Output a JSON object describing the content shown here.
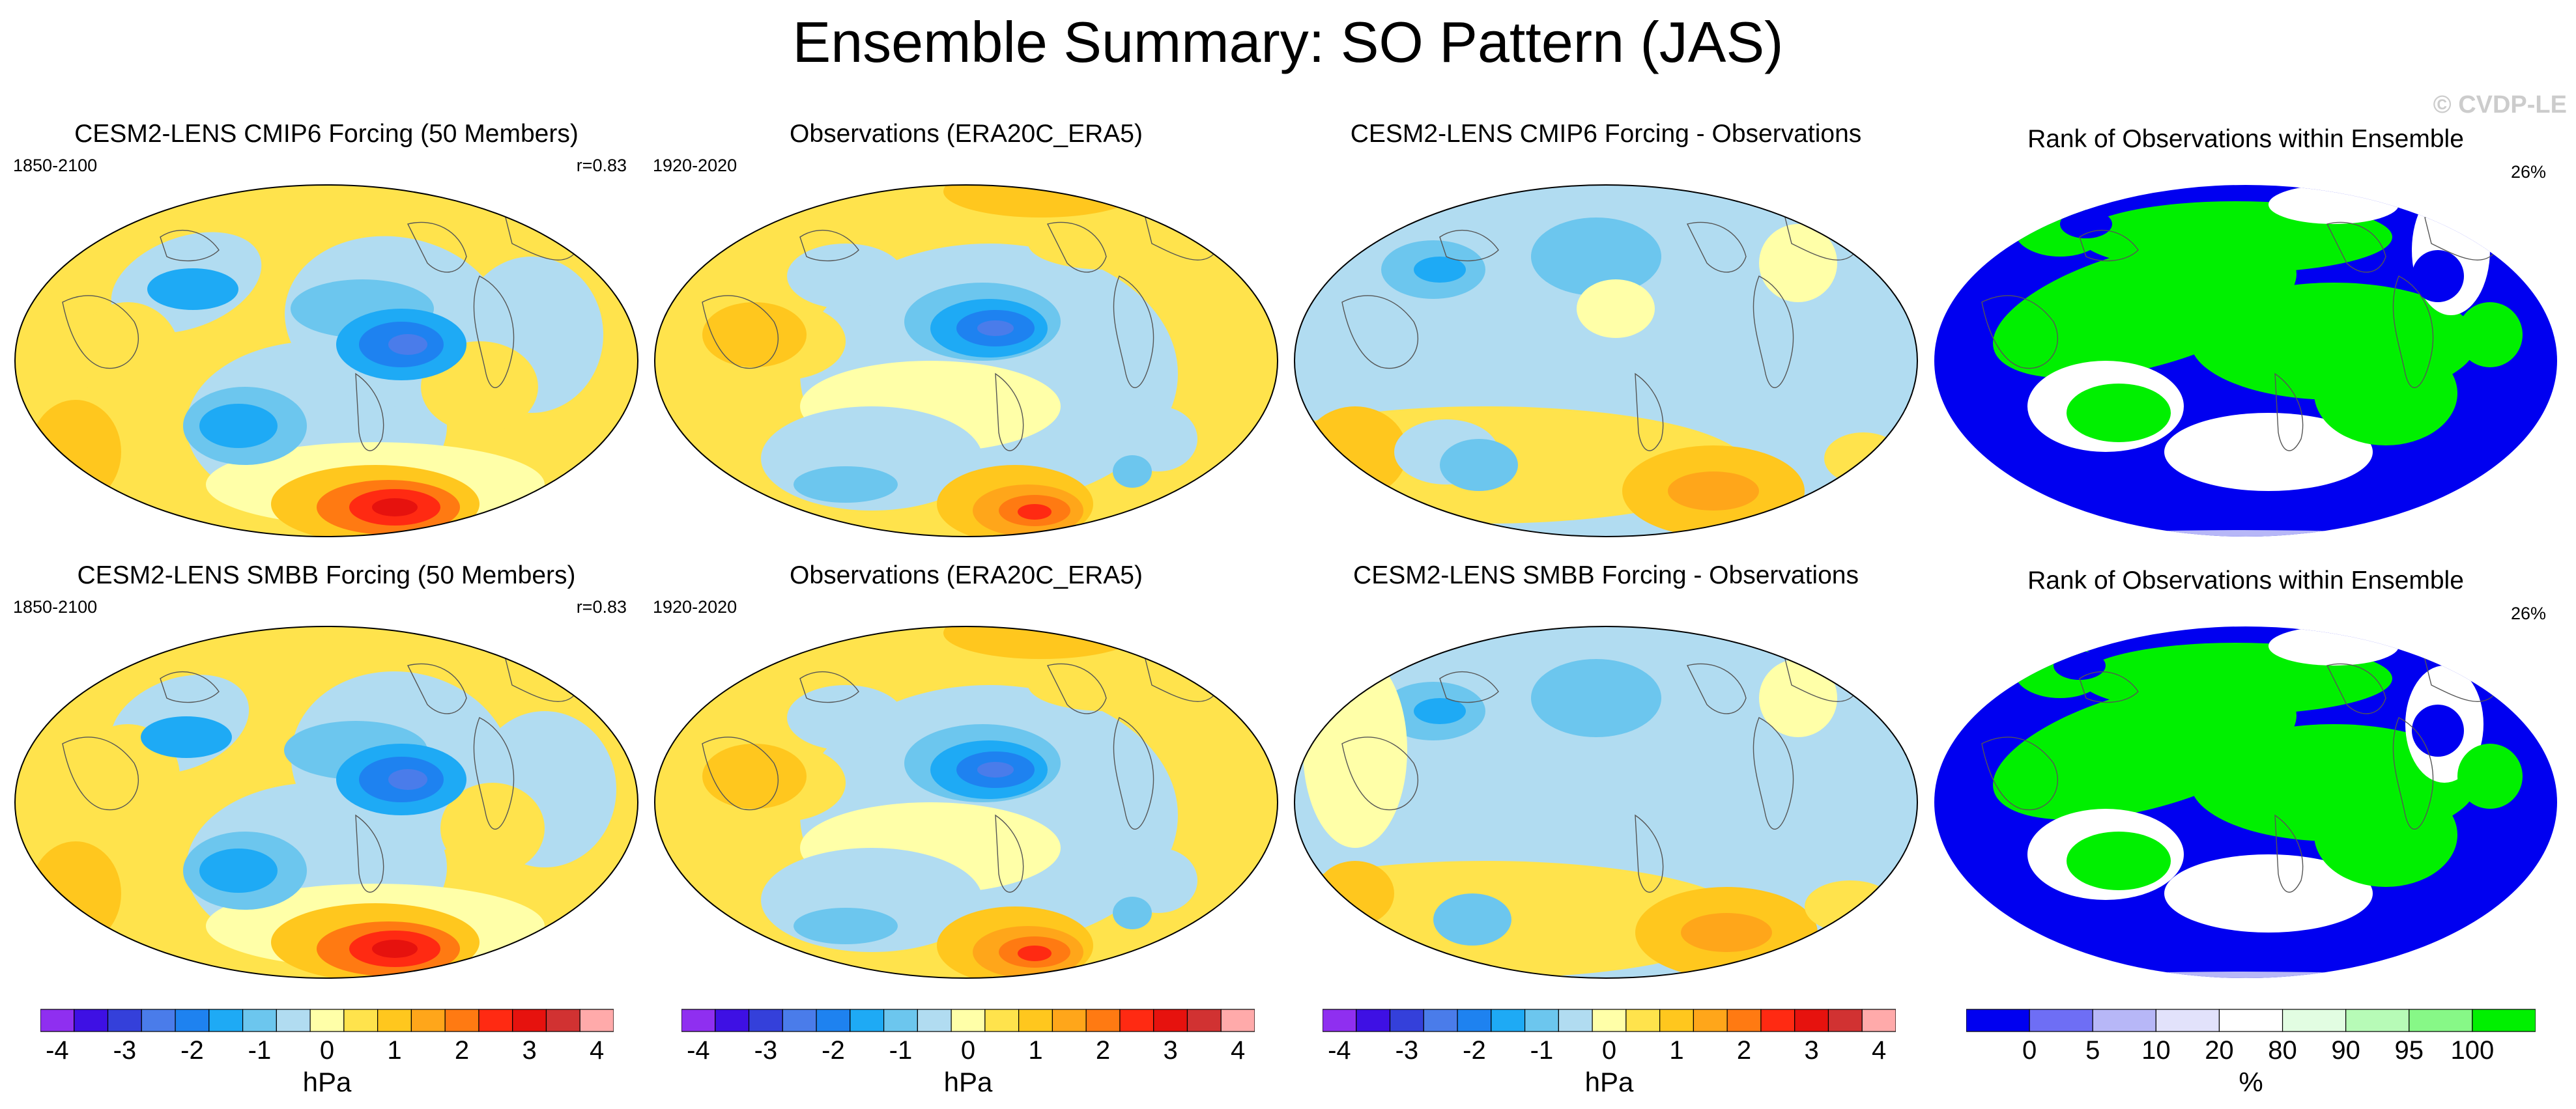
{
  "title": "Ensemble Summary: SO Pattern (JAS)",
  "watermark": "© CVDP-LE",
  "panels": [
    {
      "id": "p11",
      "title": "CESM2-LENS CMIP6 Forcing (50 Members)",
      "left_text": "1850-2100",
      "right_text": "r=0.83",
      "kind": "pattern",
      "pattern_variant": "cmip6"
    },
    {
      "id": "p12",
      "title": "Observations (ERA20C_ERA5)",
      "left_text": "1920-2020",
      "right_text": "",
      "kind": "pattern",
      "pattern_variant": "obs"
    },
    {
      "id": "p13",
      "title": "CESM2-LENS CMIP6 Forcing - Observations",
      "left_text": "",
      "right_text": "",
      "kind": "difference",
      "pattern_variant": "diff1"
    },
    {
      "id": "p14",
      "title": "Rank of Observations within Ensemble",
      "left_text": "",
      "right_text": "26%",
      "kind": "rank",
      "pattern_variant": "rank1"
    },
    {
      "id": "p21",
      "title": "CESM2-LENS SMBB Forcing (50 Members)",
      "left_text": "1850-2100",
      "right_text": "r=0.83",
      "kind": "pattern",
      "pattern_variant": "smbb"
    },
    {
      "id": "p22",
      "title": "Observations (ERA20C_ERA5)",
      "left_text": "1920-2020",
      "right_text": "",
      "kind": "pattern",
      "pattern_variant": "obs"
    },
    {
      "id": "p23",
      "title": "CESM2-LENS SMBB Forcing - Observations",
      "left_text": "",
      "right_text": "",
      "kind": "difference",
      "pattern_variant": "diff2"
    },
    {
      "id": "p24",
      "title": "Rank of Observations within Ensemble",
      "left_text": "",
      "right_text": "26%",
      "kind": "rank",
      "pattern_variant": "rank2"
    }
  ],
  "colorbars": {
    "pressure": {
      "units": "hPa",
      "colors": [
        "#8f2ff0",
        "#3e10e4",
        "#3440da",
        "#4a7cea",
        "#1e82f0",
        "#1eaaf5",
        "#6cc6ee",
        "#b1dcf1",
        "#ffffa8",
        "#ffe34c",
        "#ffc71e",
        "#ffa61a",
        "#ff7a12",
        "#ff2a12",
        "#e6120e",
        "#d13232",
        "#ffaaaa"
      ],
      "tick_labels": [
        "-4",
        "-3",
        "-2",
        "-1",
        "0",
        "1",
        "2",
        "3",
        "4"
      ]
    },
    "rank": {
      "units": "%",
      "colors": [
        "#0000f0",
        "#6e6ef5",
        "#b7b7f7",
        "#e2e2fb",
        "#ffffff",
        "#e2fde2",
        "#b7fbb7",
        "#87f887",
        "#00f000"
      ],
      "tick_labels": [
        "0",
        "5",
        "10",
        "20",
        "80",
        "90",
        "95",
        "100"
      ]
    }
  }
}
